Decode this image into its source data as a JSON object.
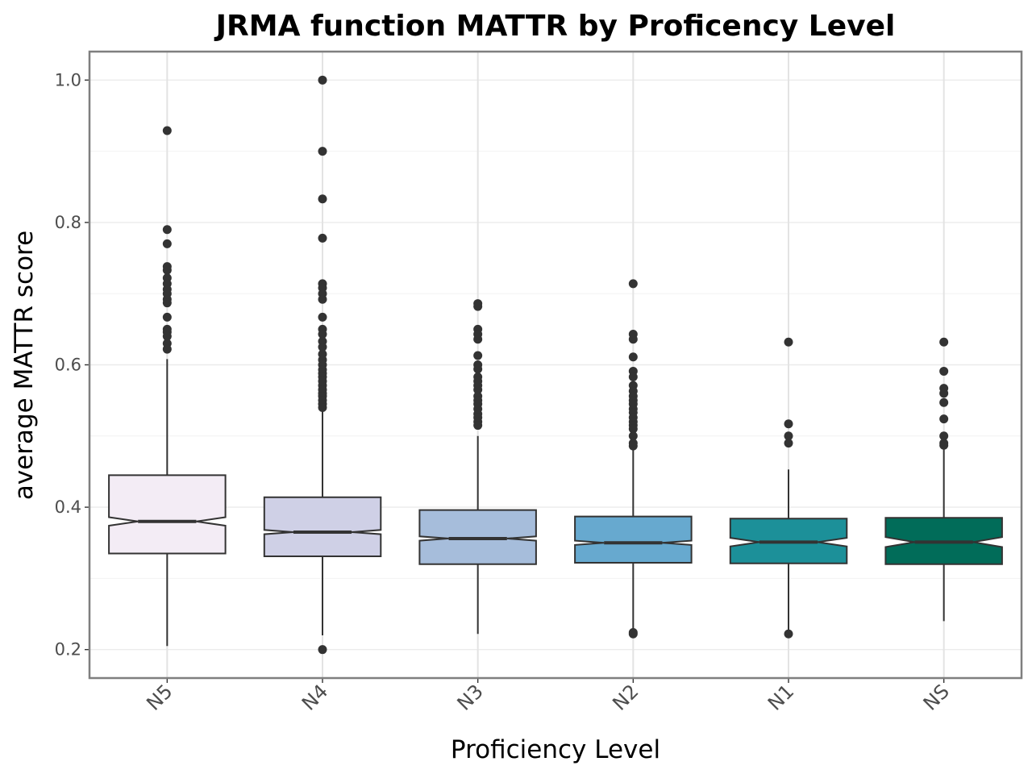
{
  "chart_data": {
    "type": "box",
    "title": "JRMA function MATTR by Proficency Level",
    "xlabel": "Proficiency Level",
    "ylabel": "average MATTR score",
    "ylim": [
      0.16,
      1.04
    ],
    "yticks": [
      0.2,
      0.4,
      0.6,
      0.8,
      1.0
    ],
    "ytick_labels": [
      "0.2",
      "0.4",
      "0.6",
      "0.8",
      "1.0"
    ],
    "grid": true,
    "notched": true,
    "categories": [
      "N5",
      "N4",
      "N3",
      "N2",
      "N1",
      "NS"
    ],
    "boxes": [
      {
        "category": "N5",
        "fill": "#f3ecf5",
        "q1": 0.335,
        "median": 0.38,
        "q3": 0.445,
        "notch_low": 0.374,
        "notch_high": 0.386,
        "whisker_low": 0.205,
        "whisker_high": 0.608,
        "outliers": [
          0.929,
          0.79,
          0.77,
          0.738,
          0.733,
          0.722,
          0.714,
          0.706,
          0.7,
          0.692,
          0.687,
          0.667,
          0.65,
          0.646,
          0.64,
          0.63,
          0.622
        ]
      },
      {
        "category": "N4",
        "fill": "#cfd0e6",
        "q1": 0.331,
        "median": 0.365,
        "q3": 0.414,
        "notch_low": 0.362,
        "notch_high": 0.368,
        "whisker_low": 0.22,
        "whisker_high": 0.537,
        "outliers": [
          1.0,
          0.9,
          0.833,
          0.778,
          0.714,
          0.708,
          0.7,
          0.692,
          0.667,
          0.65,
          0.643,
          0.633,
          0.625,
          0.615,
          0.607,
          0.6,
          0.593,
          0.588,
          0.583,
          0.577,
          0.571,
          0.565,
          0.56,
          0.556,
          0.55,
          0.545,
          0.54,
          0.2
        ]
      },
      {
        "category": "N3",
        "fill": "#a6bddb",
        "q1": 0.32,
        "median": 0.356,
        "q3": 0.396,
        "notch_low": 0.353,
        "notch_high": 0.359,
        "whisker_low": 0.222,
        "whisker_high": 0.5,
        "outliers": [
          0.686,
          0.682,
          0.65,
          0.643,
          0.636,
          0.613,
          0.6,
          0.594,
          0.583,
          0.577,
          0.571,
          0.565,
          0.556,
          0.55,
          0.545,
          0.538,
          0.531,
          0.526,
          0.52,
          0.515
        ]
      },
      {
        "category": "N2",
        "fill": "#67a9cf",
        "q1": 0.322,
        "median": 0.35,
        "q3": 0.387,
        "notch_low": 0.347,
        "notch_high": 0.353,
        "whisker_low": 0.226,
        "whisker_high": 0.485,
        "outliers": [
          0.714,
          0.643,
          0.636,
          0.611,
          0.591,
          0.583,
          0.571,
          0.563,
          0.556,
          0.55,
          0.545,
          0.538,
          0.533,
          0.526,
          0.52,
          0.515,
          0.51,
          0.5,
          0.49,
          0.486,
          0.224,
          0.222
        ]
      },
      {
        "category": "N1",
        "fill": "#1c9099",
        "q1": 0.321,
        "median": 0.351,
        "q3": 0.384,
        "notch_low": 0.345,
        "notch_high": 0.357,
        "whisker_low": 0.226,
        "whisker_high": 0.453,
        "outliers": [
          0.632,
          0.517,
          0.5,
          0.49,
          0.222
        ]
      },
      {
        "category": "NS",
        "fill": "#016c59",
        "q1": 0.32,
        "median": 0.351,
        "q3": 0.385,
        "notch_low": 0.344,
        "notch_high": 0.358,
        "whisker_low": 0.24,
        "whisker_high": 0.485,
        "outliers": [
          0.632,
          0.591,
          0.567,
          0.56,
          0.547,
          0.524,
          0.5,
          0.49,
          0.487
        ]
      }
    ]
  }
}
